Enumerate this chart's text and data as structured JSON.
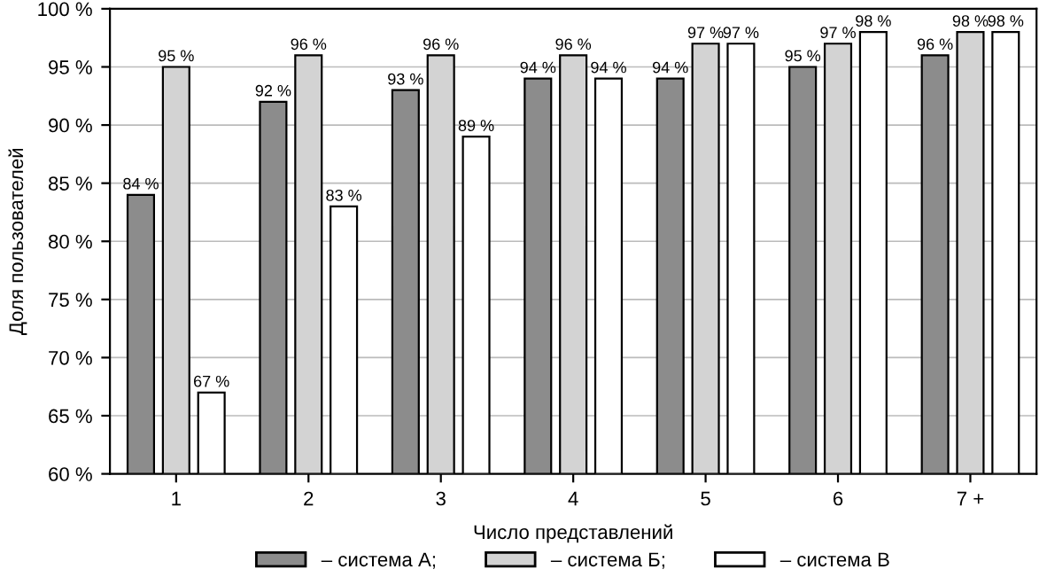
{
  "chart_data": {
    "type": "bar",
    "xlabel": "Число представлений",
    "ylabel": "Доля пользователей",
    "categories": [
      "1",
      "2",
      "3",
      "4",
      "5",
      "6",
      "7 +"
    ],
    "series": [
      {
        "name": "– система А;",
        "color": "#8c8c8c",
        "values": [
          84,
          92,
          93,
          94,
          94,
          95,
          96
        ],
        "value_labels": [
          "84 %",
          "92 %",
          "93 %",
          "94 %",
          "94 %",
          "95 %",
          "96 %"
        ]
      },
      {
        "name": "– система Б;",
        "color": "#d3d3d3",
        "values": [
          95,
          96,
          96,
          96,
          97,
          97,
          98
        ],
        "value_labels": [
          "95 %",
          "96 %",
          "96 %",
          "96 %",
          "97 %",
          "97 %",
          "98 %"
        ]
      },
      {
        "name": "– система В",
        "color": "#ffffff",
        "values": [
          67,
          83,
          89,
          94,
          97,
          98,
          98
        ],
        "value_labels": [
          "67 %",
          "83 %",
          "89 %",
          "94 %",
          "97 %",
          "98 %",
          "98 %"
        ]
      }
    ],
    "ylim": [
      60,
      100
    ],
    "yticks": [
      {
        "value": 60,
        "label": "60 %"
      },
      {
        "value": 65,
        "label": "65 %"
      },
      {
        "value": 70,
        "label": "70 %"
      },
      {
        "value": 75,
        "label": "75 %"
      },
      {
        "value": 80,
        "label": "80 %"
      },
      {
        "value": 85,
        "label": "85 %"
      },
      {
        "value": 90,
        "label": "90 %"
      },
      {
        "value": 95,
        "label": "95 %"
      },
      {
        "value": 100,
        "label": "100 %"
      }
    ],
    "grid": "y",
    "legend": "bottom"
  }
}
